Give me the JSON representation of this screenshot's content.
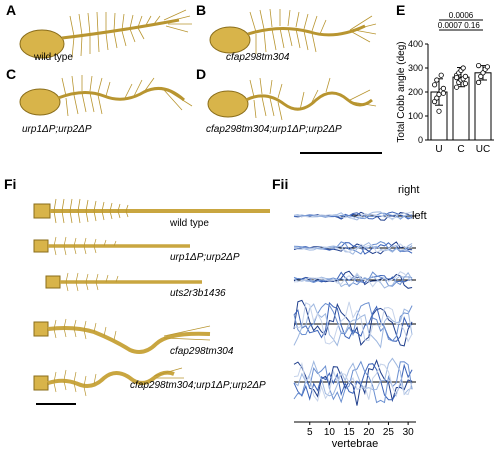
{
  "panels": {
    "A": {
      "letter": "A",
      "label": "wild type"
    },
    "B": {
      "letter": "B",
      "label": "cfap298tm304"
    },
    "C": {
      "letter": "C",
      "label": "urp1ΔP;urp2ΔP"
    },
    "D": {
      "letter": "D",
      "label": "cfap298tm304;urp1ΔP;urp2ΔP"
    },
    "E": {
      "letter": "E"
    },
    "Fi": {
      "letter": "Fi"
    },
    "Fii": {
      "letter": "Fii",
      "right": "right",
      "left": "left"
    }
  },
  "fi_labels": [
    "wild type",
    "urp1ΔP;urp2ΔP",
    "uts2r3b1436",
    "cfap298tm304",
    "cfap298tm304;urp1ΔP;urp2ΔP"
  ],
  "chart_data": [
    {
      "type": "bar",
      "categories": [
        "U",
        "C",
        "UC"
      ],
      "values": [
        200,
        262,
        280
      ],
      "errors": [
        55,
        40,
        30
      ],
      "points": [
        [
          160,
          175,
          190,
          205,
          215,
          230,
          250,
          120,
          270,
          195
        ],
        [
          220,
          240,
          250,
          255,
          265,
          270,
          280,
          290,
          300,
          235,
          260
        ],
        [
          240,
          265,
          280,
          295,
          305,
          310
        ]
      ],
      "ylabel": "Total Cobb angle (deg)",
      "ylim": [
        0,
        400
      ],
      "yticks": [
        0,
        100,
        200,
        300,
        400
      ],
      "significance": [
        {
          "pair": [
            "U",
            "C"
          ],
          "p": "0.0007"
        },
        {
          "pair": [
            "C",
            "UC"
          ],
          "p": "0.16"
        },
        {
          "pair": [
            "U",
            "UC"
          ],
          "p": "0.0006"
        }
      ]
    },
    {
      "type": "line",
      "xlabel": "vertebrae",
      "xticks": [
        5,
        10,
        15,
        20,
        25,
        30
      ],
      "xlim": [
        1,
        32
      ],
      "rows": 5
    }
  ],
  "colors": {
    "skeleton": "#c9a640",
    "skeleton_dark": "#8a6d1a",
    "line_palette": [
      "#1f3e8c",
      "#3a62b8",
      "#6a8fd0",
      "#9fb8e0",
      "#c6d3ea"
    ]
  }
}
